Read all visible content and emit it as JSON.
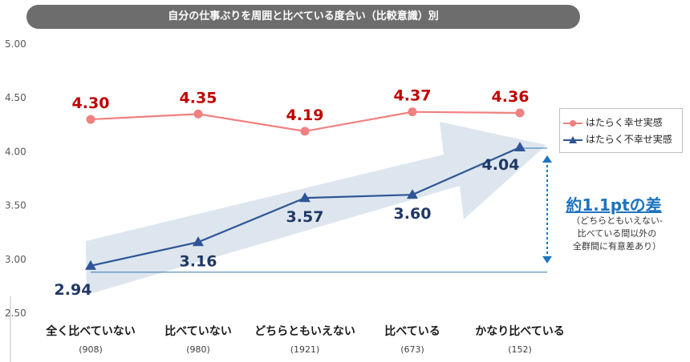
{
  "chart_data": {
    "type": "line",
    "title": "自分の仕事ぶりを周囲と比べている度合い（比較意識）別",
    "categories": [
      "全く比べていない",
      "比べていない",
      "どちらともいえない",
      "比べている",
      "かなり比べている"
    ],
    "sample_sizes": [
      "(908)",
      "(980)",
      "(1921)",
      "(673)",
      "(152)"
    ],
    "series": [
      {
        "name": "はたらく幸せ実感",
        "values": [
          4.3,
          4.35,
          4.19,
          4.37,
          4.36
        ],
        "labels": [
          "4.30",
          "4.35",
          "4.19",
          "4.37",
          "4.36"
        ],
        "color": "#f08080"
      },
      {
        "name": "はたらく不幸せ実感",
        "values": [
          2.94,
          3.16,
          3.57,
          3.6,
          4.04
        ],
        "labels": [
          "2.94",
          "3.16",
          "3.57",
          "3.60",
          "4.04"
        ],
        "color": "#2f5597"
      }
    ],
    "ylim": [
      2.5,
      5.0
    ],
    "yticks": [
      "2.50",
      "3.00",
      "3.50",
      "4.00",
      "4.50",
      "5.00"
    ],
    "grid": false,
    "legend_position": "right",
    "annotation": {
      "title": "約1.1ptの差",
      "note": [
        "（どちらともいえない-",
        "比べている間以外の",
        "全群間に有意差あり）"
      ]
    },
    "label_colors": {
      "happy": "#c00000",
      "unhappy": "#1f3864"
    }
  }
}
